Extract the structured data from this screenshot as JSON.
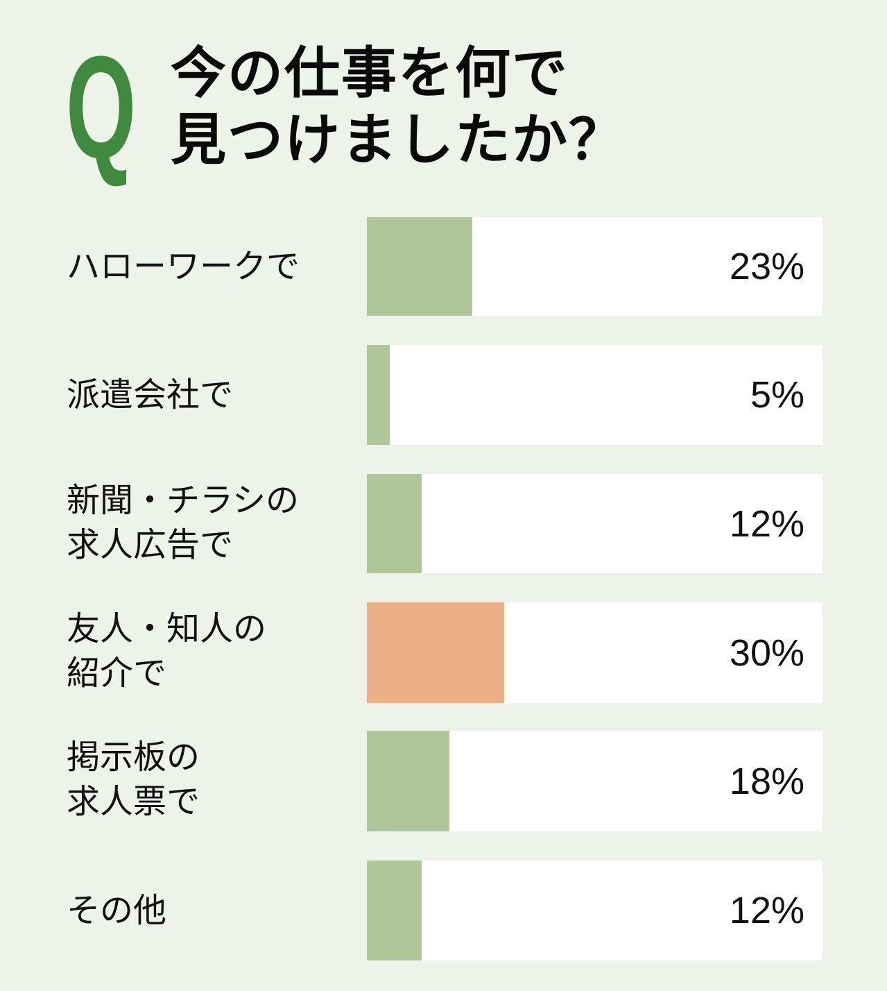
{
  "header": {
    "q_mark": "Q",
    "title": "今の仕事を何で\n見つけましたか？"
  },
  "colors": {
    "background": "#eef3ea",
    "q_mark": "#3f8a3f",
    "bar_default": "#aec698",
    "bar_highlight": "#ebb085",
    "track": "#ffffff"
  },
  "rows": [
    {
      "label": "ハローワークで",
      "value": 23,
      "value_label": "23%",
      "highlight": false
    },
    {
      "label": "派遣会社で",
      "value": 5,
      "value_label": "5%",
      "highlight": false
    },
    {
      "label": "新聞・チラシの\n求人広告で",
      "value": 12,
      "value_label": "12%",
      "highlight": false
    },
    {
      "label": "友人・知人の\n紹介で",
      "value": 30,
      "value_label": "30%",
      "highlight": true
    },
    {
      "label": "掲示板の\n求人票で",
      "value": 18,
      "value_label": "18%",
      "highlight": false
    },
    {
      "label": "その他",
      "value": 12,
      "value_label": "12%",
      "highlight": false
    }
  ],
  "chart_data": {
    "type": "bar",
    "orientation": "horizontal",
    "title": "今の仕事を何で見つけましたか？",
    "categories": [
      "ハローワークで",
      "派遣会社で",
      "新聞・チラシの求人広告で",
      "友人・知人の紹介で",
      "掲示板の求人票で",
      "その他"
    ],
    "values": [
      23,
      5,
      12,
      30,
      18,
      12
    ],
    "unit": "%",
    "xlabel": "",
    "ylabel": "",
    "xlim": [
      0,
      100
    ],
    "grid": false,
    "legend": null,
    "highlighted_category": "友人・知人の紹介で"
  }
}
